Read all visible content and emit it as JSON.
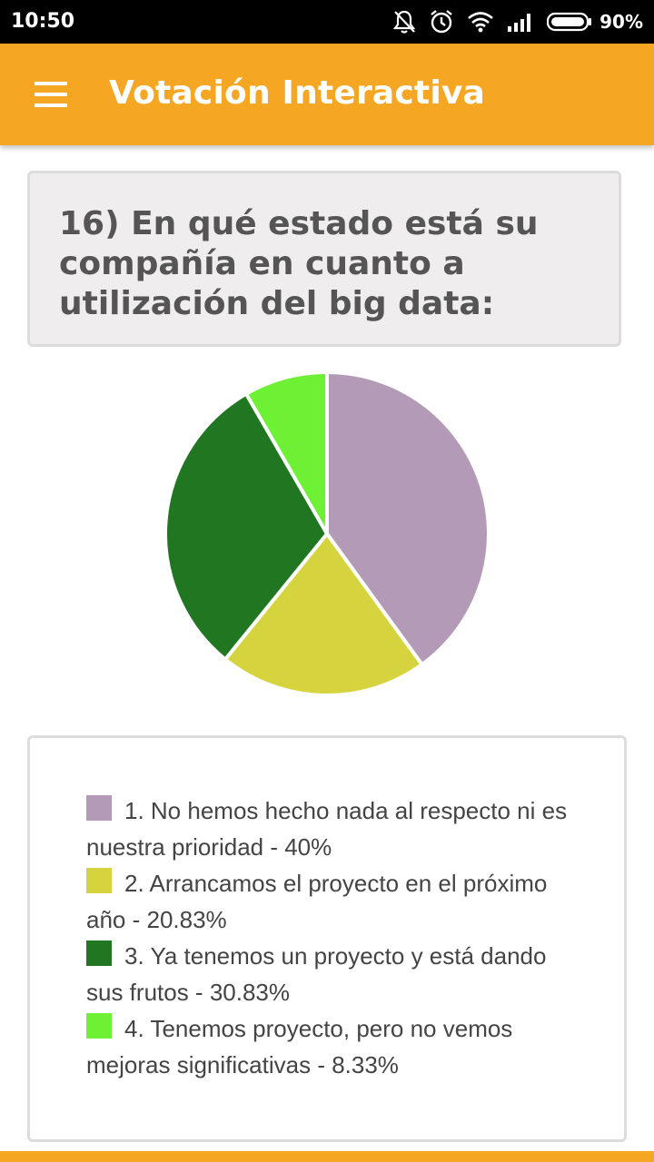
{
  "status_bar": {
    "time": "10:50",
    "battery": "90%",
    "icons": [
      "notifications-off-icon",
      "alarm-icon",
      "wifi-icon",
      "signal-icon",
      "battery-icon"
    ]
  },
  "app_bar": {
    "title": "Votación Interactiva",
    "menu_icon": "menu-icon",
    "color": "#f5a623"
  },
  "question": {
    "text": "16) En qué estado está su compañía en cuanto a utilización del big data:"
  },
  "legend": {
    "items": [
      {
        "label": "1. No hemos hecho nada al respecto ni es nuestra prioridad - 40%",
        "color": "#b39bb7"
      },
      {
        "label": "2. Arrancamos el proyecto en el próximo año - 20.83%",
        "color": "#d6d43e"
      },
      {
        "label": "3. Ya tenemos un proyecto y está dando sus frutos - 30.83%",
        "color": "#217621"
      },
      {
        "label": "4. Tenemos proyecto, pero no vemos mejoras significativas - 8.33%",
        "color": "#6ef035"
      }
    ]
  },
  "chart_data": {
    "type": "pie",
    "categories": [
      "1. No hemos hecho nada al respecto ni es nuestra prioridad",
      "2. Arrancamos el proyecto en el próximo año",
      "3. Ya tenemos un proyecto y está dando sus frutos",
      "4. Tenemos proyecto, pero no vemos mejoras significativas"
    ],
    "values": [
      40,
      20.83,
      30.83,
      8.33
    ],
    "colors": [
      "#b39bb7",
      "#d6d43e",
      "#217621",
      "#6ef035"
    ],
    "title": "",
    "start_angle": "top",
    "direction": "clockwise"
  }
}
